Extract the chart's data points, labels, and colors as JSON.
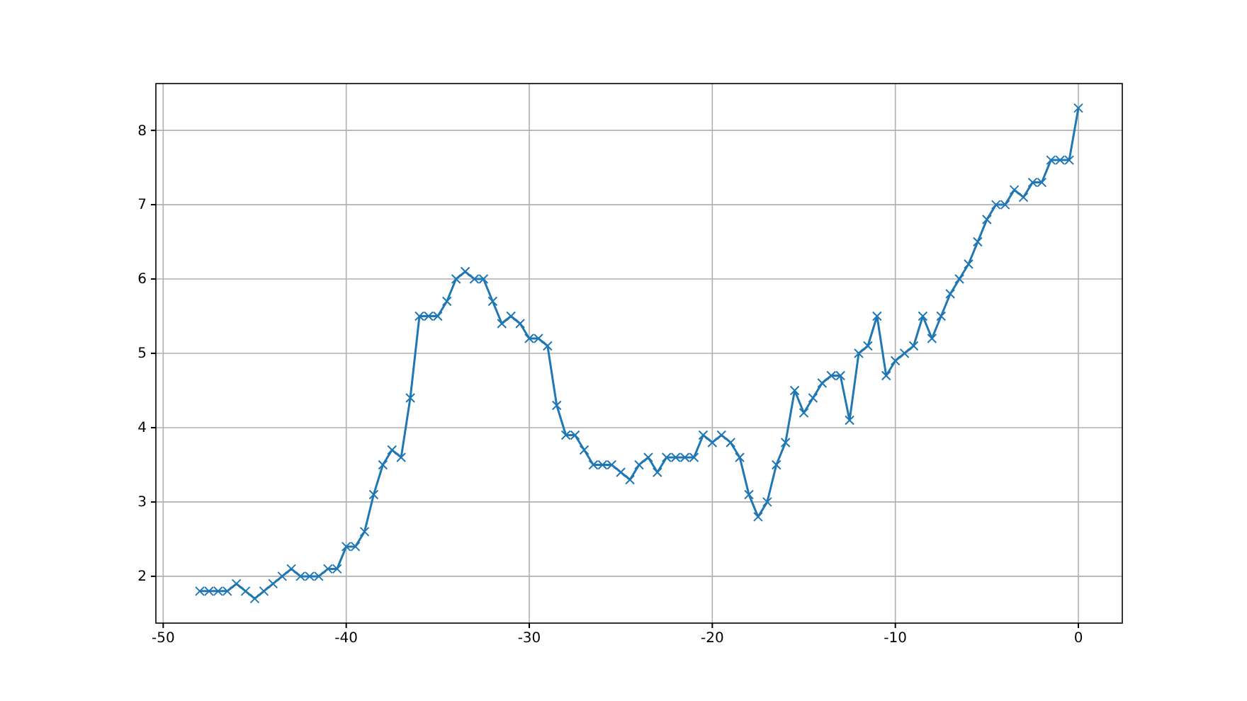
{
  "chart_data": {
    "type": "line",
    "marker": "cross",
    "grid": true,
    "xlim": [
      -50.4,
      2.4
    ],
    "ylim": [
      1.37,
      8.63
    ],
    "xticks": [
      -50,
      -40,
      -30,
      -20,
      -10,
      0
    ],
    "yticks": [
      2,
      3,
      4,
      5,
      6,
      7,
      8
    ],
    "x": [
      -48,
      -47.5,
      -47,
      -46.5,
      -46,
      -45.5,
      -45,
      -44.5,
      -44,
      -43.5,
      -43,
      -42.5,
      -42,
      -41.5,
      -41,
      -40.5,
      -40,
      -39.5,
      -39,
      -38.5,
      -38,
      -37.5,
      -37,
      -36.5,
      -36,
      -35.5,
      -35,
      -34.5,
      -34,
      -33.5,
      -33,
      -32.5,
      -32,
      -31.5,
      -31,
      -30.5,
      -30,
      -29.5,
      -29,
      -28.5,
      -28,
      -27.5,
      -27,
      -26.5,
      -26,
      -25.5,
      -25,
      -24.5,
      -24,
      -23.5,
      -23,
      -22.5,
      -22,
      -21.5,
      -21,
      -20.5,
      -20,
      -19.5,
      -19,
      -18.5,
      -18,
      -17.5,
      -17,
      -16.5,
      -16,
      -15.5,
      -15,
      -14.5,
      -14,
      -13.5,
      -13,
      -12.5,
      -12,
      -11.5,
      -11,
      -10.5,
      -10,
      -9.5,
      -9,
      -8.5,
      -8,
      -7.5,
      -7,
      -6.5,
      -6,
      -5.5,
      -5,
      -4.5,
      -4,
      -3.5,
      -3,
      -2.5,
      -2,
      -1.5,
      -1,
      -0.5,
      0
    ],
    "series": [
      {
        "color": "#1f77b4",
        "values": [
          1.8,
          1.8,
          1.8,
          1.8,
          1.9,
          1.8,
          1.7,
          1.8,
          1.9,
          2.0,
          2.1,
          2.0,
          2.0,
          2.0,
          2.1,
          2.1,
          2.4,
          2.4,
          2.6,
          3.1,
          3.5,
          3.7,
          3.6,
          4.4,
          5.5,
          5.5,
          5.5,
          5.7,
          6.0,
          6.1,
          6.0,
          6.0,
          5.7,
          5.4,
          5.5,
          5.4,
          5.2,
          5.2,
          5.1,
          4.3,
          3.9,
          3.9,
          3.7,
          3.5,
          3.5,
          3.5,
          3.4,
          3.3,
          3.5,
          3.6,
          3.4,
          3.6,
          3.6,
          3.6,
          3.6,
          3.9,
          3.8,
          3.9,
          3.8,
          3.6,
          3.1,
          2.8,
          3.0,
          3.5,
          3.8,
          4.5,
          4.2,
          4.4,
          4.6,
          4.7,
          4.7,
          4.1,
          5.0,
          5.1,
          5.5,
          4.7,
          4.9,
          5.0,
          5.1,
          5.5,
          5.2,
          5.5,
          5.8,
          6.0,
          6.2,
          6.5,
          6.8,
          7.0,
          7.0,
          7.2,
          7.1,
          7.3,
          7.3,
          7.6,
          7.6,
          7.6,
          8.3
        ]
      }
    ]
  }
}
